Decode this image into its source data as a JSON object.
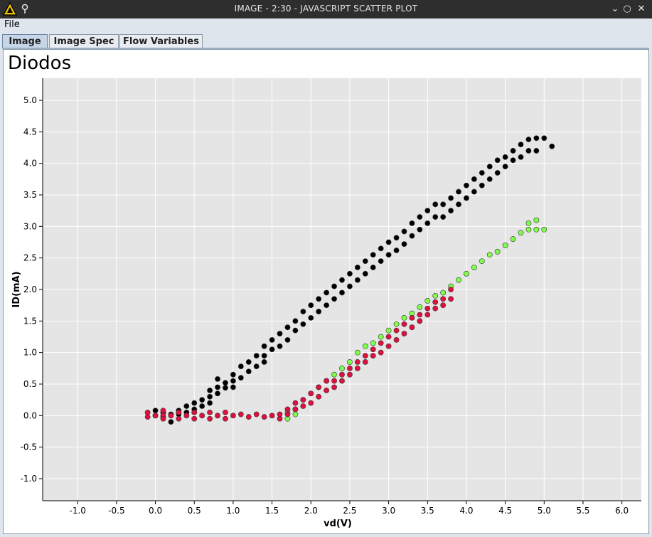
{
  "window": {
    "title": "IMAGE - 2:30 - JAVASCRIPT SCATTER PLOT",
    "controls": [
      "minimize-icon",
      "maximize-icon",
      "close-icon"
    ]
  },
  "menu": {
    "file_label": "File"
  },
  "tabs": [
    {
      "label": "Image",
      "active": true
    },
    {
      "label": "Image Spec",
      "active": false
    },
    {
      "label": "Flow Variables",
      "active": false
    }
  ],
  "colors": {
    "plot_bg": "#e5e5e5",
    "grid": "#ffffff",
    "black_series": "#000000",
    "red_series": "#e0103e",
    "green_series": "#7fff4a"
  },
  "chart_data": {
    "type": "scatter",
    "title": "Diodos",
    "xlabel": "vd(V)",
    "ylabel": "ID(mA)",
    "xlim": [
      -1.45,
      6.25
    ],
    "ylim": [
      -1.35,
      5.35
    ],
    "x_ticks": [
      "-1.0",
      "-0.5",
      "0.0",
      "0.5",
      "1.0",
      "1.5",
      "2.0",
      "2.5",
      "3.0",
      "3.5",
      "4.0",
      "4.5",
      "5.0",
      "5.5",
      "6.0"
    ],
    "y_ticks": [
      "-1.0",
      "-0.5",
      "0.0",
      "0.5",
      "1.0",
      "1.5",
      "2.0",
      "2.5",
      "3.0",
      "3.5",
      "4.0",
      "4.5",
      "5.0"
    ],
    "grid": true,
    "legend": "none",
    "series": [
      {
        "color": "#000000",
        "points": [
          [
            0.0,
            0.08
          ],
          [
            0.0,
            0.0
          ],
          [
            0.1,
            0.05
          ],
          [
            0.1,
            -0.02
          ],
          [
            0.2,
            0.02
          ],
          [
            0.2,
            -0.1
          ],
          [
            0.3,
            0.08
          ],
          [
            0.3,
            0.02
          ],
          [
            0.4,
            0.15
          ],
          [
            0.4,
            0.05
          ],
          [
            0.5,
            0.2
          ],
          [
            0.5,
            0.1
          ],
          [
            0.6,
            0.25
          ],
          [
            0.6,
            0.15
          ],
          [
            0.7,
            0.4
          ],
          [
            0.7,
            0.3
          ],
          [
            0.7,
            0.2
          ],
          [
            0.8,
            0.58
          ],
          [
            0.8,
            0.45
          ],
          [
            0.8,
            0.35
          ],
          [
            0.9,
            0.52
          ],
          [
            0.9,
            0.44
          ],
          [
            1.0,
            0.65
          ],
          [
            1.0,
            0.55
          ],
          [
            1.0,
            0.45
          ],
          [
            1.1,
            0.78
          ],
          [
            1.1,
            0.6
          ],
          [
            1.2,
            0.85
          ],
          [
            1.2,
            0.7
          ],
          [
            1.3,
            0.95
          ],
          [
            1.3,
            0.78
          ],
          [
            1.4,
            1.1
          ],
          [
            1.4,
            0.95
          ],
          [
            1.4,
            0.85
          ],
          [
            1.5,
            1.2
          ],
          [
            1.5,
            1.05
          ],
          [
            1.6,
            1.3
          ],
          [
            1.6,
            1.1
          ],
          [
            1.7,
            1.4
          ],
          [
            1.7,
            1.2
          ],
          [
            1.8,
            1.5
          ],
          [
            1.8,
            1.35
          ],
          [
            1.9,
            1.65
          ],
          [
            1.9,
            1.45
          ],
          [
            2.0,
            1.75
          ],
          [
            2.0,
            1.55
          ],
          [
            2.1,
            1.85
          ],
          [
            2.1,
            1.65
          ],
          [
            2.2,
            1.95
          ],
          [
            2.2,
            1.75
          ],
          [
            2.3,
            2.05
          ],
          [
            2.3,
            1.85
          ],
          [
            2.4,
            2.15
          ],
          [
            2.4,
            1.95
          ],
          [
            2.5,
            2.25
          ],
          [
            2.5,
            2.05
          ],
          [
            2.6,
            2.35
          ],
          [
            2.6,
            2.15
          ],
          [
            2.7,
            2.45
          ],
          [
            2.7,
            2.25
          ],
          [
            2.8,
            2.55
          ],
          [
            2.8,
            2.35
          ],
          [
            2.9,
            2.65
          ],
          [
            2.9,
            2.45
          ],
          [
            3.0,
            2.75
          ],
          [
            3.0,
            2.55
          ],
          [
            3.1,
            2.82
          ],
          [
            3.1,
            2.62
          ],
          [
            3.2,
            2.92
          ],
          [
            3.2,
            2.72
          ],
          [
            3.3,
            3.05
          ],
          [
            3.3,
            2.85
          ],
          [
            3.4,
            3.15
          ],
          [
            3.4,
            2.95
          ],
          [
            3.5,
            3.25
          ],
          [
            3.5,
            3.05
          ],
          [
            3.6,
            3.35
          ],
          [
            3.6,
            3.15
          ],
          [
            3.7,
            3.35
          ],
          [
            3.7,
            3.15
          ],
          [
            3.8,
            3.45
          ],
          [
            3.8,
            3.25
          ],
          [
            3.9,
            3.55
          ],
          [
            3.9,
            3.35
          ],
          [
            4.0,
            3.65
          ],
          [
            4.0,
            3.45
          ],
          [
            4.1,
            3.75
          ],
          [
            4.1,
            3.55
          ],
          [
            4.2,
            3.85
          ],
          [
            4.2,
            3.65
          ],
          [
            4.3,
            3.95
          ],
          [
            4.3,
            3.75
          ],
          [
            4.4,
            4.05
          ],
          [
            4.4,
            3.85
          ],
          [
            4.5,
            4.1
          ],
          [
            4.5,
            3.95
          ],
          [
            4.6,
            4.2
          ],
          [
            4.6,
            4.05
          ],
          [
            4.7,
            4.3
          ],
          [
            4.7,
            4.1
          ],
          [
            4.8,
            4.38
          ],
          [
            4.8,
            4.2
          ],
          [
            4.9,
            4.4
          ],
          [
            4.9,
            4.2
          ],
          [
            5.0,
            4.4
          ],
          [
            5.1,
            4.27
          ]
        ]
      },
      {
        "color": "#7fff4a",
        "points": [
          [
            1.7,
            0.05
          ],
          [
            1.7,
            -0.05
          ],
          [
            1.8,
            0.1
          ],
          [
            1.8,
            0.02
          ],
          [
            1.9,
            0.25
          ],
          [
            2.0,
            0.35
          ],
          [
            2.1,
            0.45
          ],
          [
            2.2,
            0.55
          ],
          [
            2.3,
            0.65
          ],
          [
            2.4,
            0.75
          ],
          [
            2.5,
            0.85
          ],
          [
            2.6,
            1.0
          ],
          [
            2.7,
            1.1
          ],
          [
            2.8,
            1.15
          ],
          [
            2.9,
            1.25
          ],
          [
            3.0,
            1.35
          ],
          [
            3.1,
            1.45
          ],
          [
            3.2,
            1.55
          ],
          [
            3.3,
            1.62
          ],
          [
            3.4,
            1.72
          ],
          [
            3.5,
            1.82
          ],
          [
            3.6,
            1.9
          ],
          [
            3.7,
            1.95
          ],
          [
            3.8,
            2.05
          ],
          [
            3.9,
            2.15
          ],
          [
            4.0,
            2.25
          ],
          [
            4.1,
            2.35
          ],
          [
            4.2,
            2.45
          ],
          [
            4.3,
            2.55
          ],
          [
            4.4,
            2.6
          ],
          [
            4.5,
            2.7
          ],
          [
            4.6,
            2.8
          ],
          [
            4.7,
            2.9
          ],
          [
            4.8,
            2.95
          ],
          [
            4.9,
            3.1
          ],
          [
            5.0,
            2.95
          ],
          [
            4.9,
            2.95
          ],
          [
            4.8,
            3.05
          ]
        ]
      },
      {
        "color": "#e0103e",
        "points": [
          [
            -0.1,
            0.05
          ],
          [
            -0.1,
            -0.02
          ],
          [
            0.0,
            0.0
          ],
          [
            0.1,
            0.08
          ],
          [
            0.1,
            0.0
          ],
          [
            0.1,
            -0.05
          ],
          [
            0.2,
            0.0
          ],
          [
            0.3,
            0.05
          ],
          [
            0.3,
            -0.05
          ],
          [
            0.4,
            0.0
          ],
          [
            0.5,
            0.05
          ],
          [
            0.5,
            -0.05
          ],
          [
            0.6,
            0.0
          ],
          [
            0.7,
            0.05
          ],
          [
            0.7,
            -0.05
          ],
          [
            0.8,
            0.0
          ],
          [
            0.9,
            0.05
          ],
          [
            0.9,
            -0.05
          ],
          [
            1.0,
            0.0
          ],
          [
            1.1,
            0.02
          ],
          [
            1.2,
            -0.02
          ],
          [
            1.3,
            0.02
          ],
          [
            1.4,
            -0.02
          ],
          [
            1.5,
            0.0
          ],
          [
            1.6,
            0.02
          ],
          [
            1.6,
            -0.05
          ],
          [
            1.7,
            0.1
          ],
          [
            1.7,
            0.02
          ],
          [
            1.8,
            0.2
          ],
          [
            1.8,
            0.1
          ],
          [
            1.9,
            0.25
          ],
          [
            1.9,
            0.15
          ],
          [
            2.0,
            0.35
          ],
          [
            2.0,
            0.2
          ],
          [
            2.1,
            0.45
          ],
          [
            2.1,
            0.3
          ],
          [
            2.2,
            0.55
          ],
          [
            2.2,
            0.4
          ],
          [
            2.3,
            0.55
          ],
          [
            2.3,
            0.45
          ],
          [
            2.4,
            0.65
          ],
          [
            2.4,
            0.55
          ],
          [
            2.5,
            0.75
          ],
          [
            2.5,
            0.65
          ],
          [
            2.6,
            0.85
          ],
          [
            2.6,
            0.75
          ],
          [
            2.7,
            0.95
          ],
          [
            2.7,
            0.85
          ],
          [
            2.8,
            1.05
          ],
          [
            2.8,
            0.95
          ],
          [
            2.9,
            1.15
          ],
          [
            2.9,
            1.0
          ],
          [
            3.0,
            1.25
          ],
          [
            3.0,
            1.1
          ],
          [
            3.1,
            1.35
          ],
          [
            3.1,
            1.2
          ],
          [
            3.2,
            1.45
          ],
          [
            3.2,
            1.3
          ],
          [
            3.3,
            1.55
          ],
          [
            3.3,
            1.4
          ],
          [
            3.4,
            1.6
          ],
          [
            3.4,
            1.5
          ],
          [
            3.5,
            1.7
          ],
          [
            3.5,
            1.6
          ],
          [
            3.6,
            1.8
          ],
          [
            3.6,
            1.7
          ],
          [
            3.7,
            1.85
          ],
          [
            3.7,
            1.75
          ],
          [
            3.8,
            2.0
          ],
          [
            3.8,
            1.85
          ]
        ]
      }
    ]
  }
}
